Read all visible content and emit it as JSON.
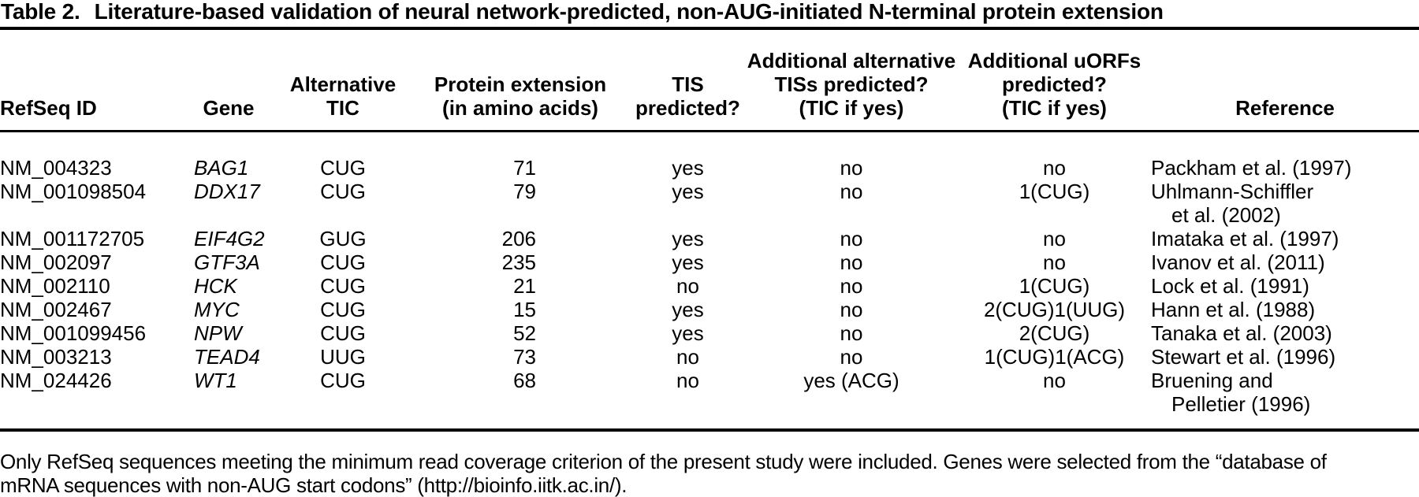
{
  "title": {
    "label": "Table 2.",
    "text": "Literature-based validation of neural network-predicted, non-AUG-initiated N-terminal protein extension"
  },
  "table": {
    "columns": [
      {
        "id": "refseq",
        "label": "RefSeq ID"
      },
      {
        "id": "gene",
        "label": "Gene"
      },
      {
        "id": "tic",
        "label": "Alternative\nTIC"
      },
      {
        "id": "ext",
        "label": "Protein extension\n(in amino acids)"
      },
      {
        "id": "tis",
        "label": "TIS\npredicted?"
      },
      {
        "id": "alt_tis",
        "label": "Additional alternative\nTISs predicted?\n(TIC if yes)"
      },
      {
        "id": "uorfs",
        "label": "Additional uORFs\npredicted?\n(TIC if yes)"
      },
      {
        "id": "ref",
        "label": "Reference"
      }
    ],
    "rows": [
      {
        "refseq": "NM_004323",
        "gene": "BAG1",
        "tic": "CUG",
        "ext": "71",
        "tis": "yes",
        "alt_tis": "no",
        "uorfs": "no",
        "ref": "Packham et al. (1997)"
      },
      {
        "refseq": "NM_001098504",
        "gene": "DDX17",
        "tic": "CUG",
        "ext": "79",
        "tis": "yes",
        "alt_tis": "no",
        "uorfs": "1(CUG)",
        "ref": "Uhlmann-Schiffler\net al. (2002)"
      },
      {
        "refseq": "NM_001172705",
        "gene": "EIF4G2",
        "tic": "GUG",
        "ext": "206",
        "tis": "yes",
        "alt_tis": "no",
        "uorfs": "no",
        "ref": "Imataka et al. (1997)"
      },
      {
        "refseq": "NM_002097",
        "gene": "GTF3A",
        "tic": "CUG",
        "ext": "235",
        "tis": "yes",
        "alt_tis": "no",
        "uorfs": "no",
        "ref": "Ivanov et al. (2011)"
      },
      {
        "refseq": "NM_002110",
        "gene": "HCK",
        "tic": "CUG",
        "ext": "21",
        "tis": "no",
        "alt_tis": "no",
        "uorfs": "1(CUG)",
        "ref": "Lock et al. (1991)"
      },
      {
        "refseq": "NM_002467",
        "gene": "MYC",
        "tic": "CUG",
        "ext": "15",
        "tis": "yes",
        "alt_tis": "no",
        "uorfs": "2(CUG)1(UUG)",
        "ref": "Hann et al. (1988)"
      },
      {
        "refseq": "NM_001099456",
        "gene": "NPW",
        "tic": "CUG",
        "ext": "52",
        "tis": "yes",
        "alt_tis": "no",
        "uorfs": "2(CUG)",
        "ref": "Tanaka et al. (2003)"
      },
      {
        "refseq": "NM_003213",
        "gene": "TEAD4",
        "tic": "UUG",
        "ext": "73",
        "tis": "no",
        "alt_tis": "no",
        "uorfs": "1(CUG)1(ACG)",
        "ref": "Stewart et al. (1996)"
      },
      {
        "refseq": "NM_024426",
        "gene": "WT1",
        "tic": "CUG",
        "ext": "68",
        "tis": "no",
        "alt_tis": "yes (ACG)",
        "uorfs": "no",
        "ref": "Bruening and\nPelletier (1996)"
      }
    ]
  },
  "footnote": "Only RefSeq sequences meeting the minimum read coverage criterion of the present study were included. Genes were selected from the “database of\nmRNA sequences with non-AUG start codons” (http://bioinfo.iitk.ac.in/)."
}
